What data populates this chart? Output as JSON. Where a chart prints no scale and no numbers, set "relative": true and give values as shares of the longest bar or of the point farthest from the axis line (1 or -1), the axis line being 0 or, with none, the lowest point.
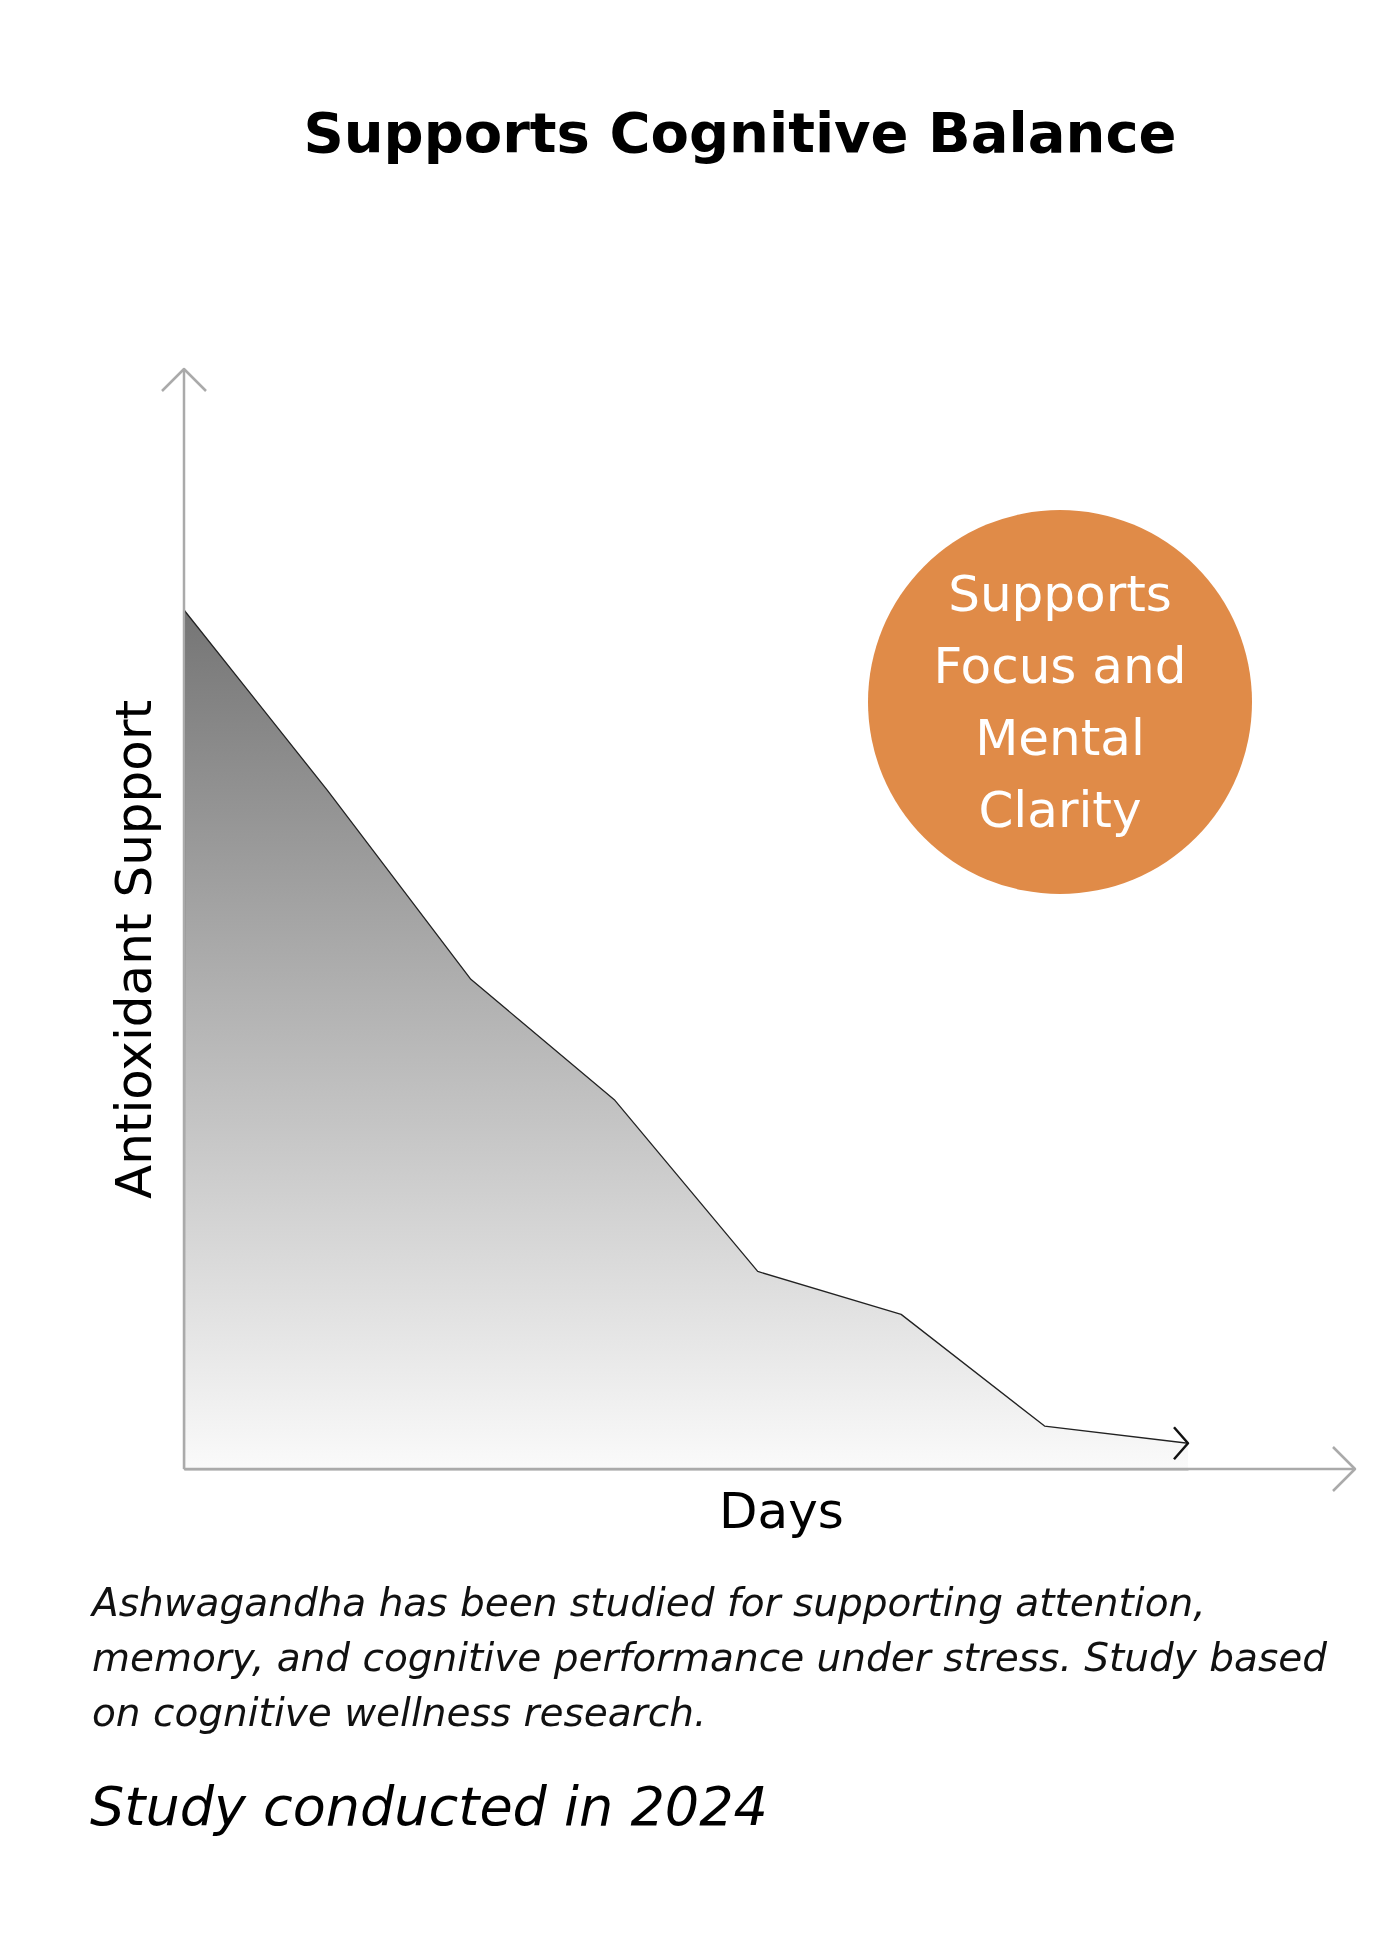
{
  "chart_data": {
    "type": "area",
    "title": "Supports Cognitive Balance",
    "xlabel": "Days",
    "ylabel": "Antioxidant Support",
    "relative": true,
    "categories": [
      null,
      null,
      null,
      null,
      null,
      null,
      null,
      null
    ],
    "series": [
      {
        "color": "#3a3a3a",
        "values": [
          1,
          0.79,
          0.57,
          0.43,
          0.23,
          0.18,
          0.05,
          0.03
        ]
      }
    ],
    "annotations": [
      "Supports Focus and Mental Clarity",
      "Ashwagandha has been studied for supporting attention, memory, and cognitive performance under stress. Study based on cognitive wellness research.",
      "Study conducted in 2024"
    ]
  }
}
